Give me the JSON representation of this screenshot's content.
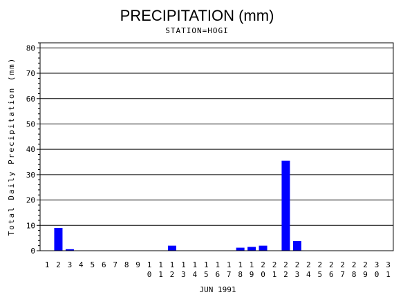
{
  "chart_data": {
    "type": "bar",
    "title": "PRECIPITATION (mm)",
    "subtitle": "STATION=HOGI",
    "xlabel": "JUN 1991",
    "ylabel": "Total Daily Precipitation (mm)",
    "ylim": [
      0,
      82
    ],
    "yticks": [
      0,
      10,
      20,
      30,
      40,
      50,
      60,
      70,
      80
    ],
    "grid": true,
    "categories": [
      "1",
      "2",
      "3",
      "4",
      "5",
      "6",
      "7",
      "8",
      "9",
      "10",
      "11",
      "12",
      "13",
      "14",
      "15",
      "16",
      "17",
      "18",
      "19",
      "20",
      "21",
      "22",
      "23",
      "24",
      "25",
      "26",
      "27",
      "28",
      "29",
      "30",
      "31"
    ],
    "values": [
      0,
      9.0,
      0.6,
      0,
      0,
      0,
      0,
      0,
      0,
      0,
      0,
      2.0,
      0,
      0,
      0,
      0,
      0,
      1.2,
      1.5,
      2.0,
      0,
      35.5,
      3.8,
      0,
      0,
      0,
      0,
      0,
      0,
      0,
      0
    ],
    "bar_color": "#0000ff"
  }
}
